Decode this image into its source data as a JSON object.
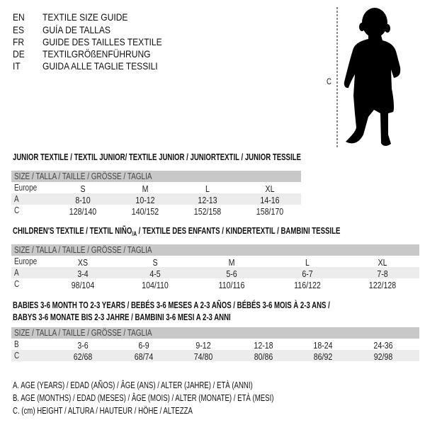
{
  "languages": [
    {
      "code": "EN",
      "title": "TEXTILE SIZE GUIDE"
    },
    {
      "code": "ES",
      "title": "GUÍA DE TALLAS"
    },
    {
      "code": "FR",
      "title": "GUIDE DES TAILLES TEXTILE"
    },
    {
      "code": "DE",
      "title": "TEXTILGRÖßENFÜHRUNG"
    },
    {
      "code": "IT",
      "title": "GUIDA ALLE TAGLIE TESSILI"
    }
  ],
  "figure": {
    "measure_label": "C",
    "icon": "child-silhouette"
  },
  "size_header": "SIZE / TALLA / TAILLE / GRÖSSE / TAGLIA",
  "junior": {
    "title": "JUNIOR TEXTILE / TEXTIL JUNIOR/ TEXTILE JUNIOR / JUNIORTEXTIL / JUNIOR TESSILE",
    "rows": [
      {
        "label": "Europe",
        "values": [
          "S",
          "M",
          "L",
          "XL"
        ]
      },
      {
        "label": "A",
        "values": [
          "8-10",
          "10-12",
          "12-13",
          "14-16"
        ]
      },
      {
        "label": "C",
        "values": [
          "128/140",
          "140/152",
          "152/158",
          "158/170"
        ]
      }
    ]
  },
  "children": {
    "title_pre": "CHILDREN'S TEXTILE / TEXTIL NIÑO",
    "title_sub": "/A",
    "title_post": " / TEXTILE DES ENFANTS / KINDERTEXTIL / BAMBINI TESSILE",
    "rows": [
      {
        "label": "Europe",
        "values": [
          "XS",
          "S",
          "M",
          "L",
          "XL"
        ]
      },
      {
        "label": "A",
        "values": [
          "3-4",
          "4-5",
          "5-6",
          "6-7",
          "7-8"
        ]
      },
      {
        "label": "C",
        "values": [
          "98/104",
          "104/110",
          "110/116",
          "116/122",
          "122/128"
        ]
      }
    ]
  },
  "babies": {
    "title_line1": "BABIES 3-6 MONTH TO 2-3 YEARS / BEBÉS 3-6 MESES A 2-3 AÑOS / BÉBÉS 3-6 MOIS À 2-3 ANS /",
    "title_line2": "BABYS 3-6 MONATE BIS 2-3 JAHRE / BAMBINI 3-6 MESI A 2-3 ANNI",
    "rows": [
      {
        "label": "B",
        "values": [
          "3-6",
          "6-9",
          "9-12",
          "12-18",
          "18-24",
          "24-36"
        ]
      },
      {
        "label": "C",
        "values": [
          "62/68",
          "68/74",
          "74/80",
          "80/86",
          "86/92",
          "92/98"
        ]
      }
    ]
  },
  "legend": [
    "A. AGE (YEARS) / EDAD (AÑOS) / ÂGE (ANS) / ALTER (JAHRE) / ETÀ (ANNI)",
    "B. AGE (MONTHS) / EDAD (MESES) / ÂGE (MOIS) / ALTER (MONATE) / ETÀ (MESI)",
    "C. (cm) HEIGHT / ALTURA / HAUTEUR / HÖHE / ALTEZZA"
  ]
}
